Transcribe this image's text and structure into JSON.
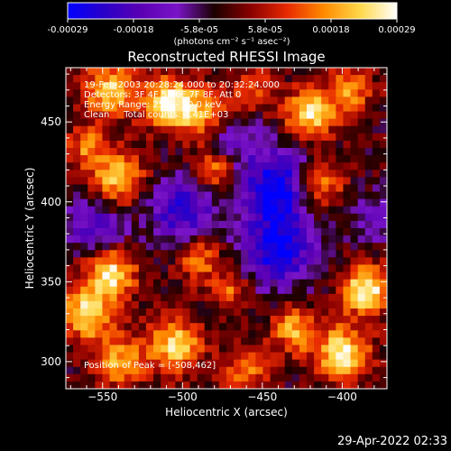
{
  "colorbar": {
    "ticks": [
      "-0.00029",
      "-0.00018",
      "-5.8e-05",
      "5.8e-05",
      "0.00018",
      "0.00029"
    ],
    "unit_label": "(photons cm⁻² s⁻¹ asec⁻²)",
    "colormap": [
      "#0000ff",
      "#2a00c8",
      "#5a00b4",
      "#7a14c8",
      "#1a0000",
      "#8a0000",
      "#e82a00",
      "#ff8a00",
      "#ffd84a",
      "#ffffff"
    ]
  },
  "info": {
    "line1": "19-Feb-2003 20:28:24.000 to 20:32:24.000",
    "line2": "Detectors: 3F 4F 5F 6F 7F 8F, Att 0",
    "line3": "Energy Range: 25.0 - 50.0 keV",
    "line4": "Clean     Total counts: 4.41E+03",
    "peak": "Position of Peak = [-508,462]"
  },
  "footer": {
    "timestamp": "29-Apr-2022 02:33"
  },
  "chart_data": {
    "type": "heatmap",
    "title": "Reconstructed RHESSI Image",
    "xlabel": "Heliocentric X (arcsec)",
    "ylabel": "Heliocentric Y (arcsec)",
    "xlim": [
      -573,
      -372
    ],
    "ylim": [
      283,
      484
    ],
    "x_ticks": [
      -550,
      -500,
      -450,
      -400
    ],
    "y_ticks": [
      300,
      350,
      400,
      450
    ],
    "x_tick_labels": [
      "−550",
      "−500",
      "−450",
      "−400"
    ],
    "y_tick_labels": [
      "300",
      "350",
      "400",
      "450"
    ],
    "value_range": [
      -0.00029,
      0.00029
    ],
    "grid": false,
    "peak_position": [
      -508,
      462
    ],
    "blobs": [
      {
        "x": -508,
        "y": 462,
        "amp": 1.0,
        "sigma": 11
      },
      {
        "x": -485,
        "y": 455,
        "amp": 0.7,
        "sigma": 12
      },
      {
        "x": -545,
        "y": 470,
        "amp": 0.8,
        "sigma": 12
      },
      {
        "x": -420,
        "y": 455,
        "amp": 0.9,
        "sigma": 11
      },
      {
        "x": -395,
        "y": 470,
        "amp": 0.6,
        "sigma": 10
      },
      {
        "x": -480,
        "y": 420,
        "amp": 0.65,
        "sigma": 10
      },
      {
        "x": -540,
        "y": 415,
        "amp": 0.8,
        "sigma": 12
      },
      {
        "x": -415,
        "y": 410,
        "amp": 0.75,
        "sigma": 11
      },
      {
        "x": -545,
        "y": 355,
        "amp": 0.95,
        "sigma": 11
      },
      {
        "x": -560,
        "y": 330,
        "amp": 0.85,
        "sigma": 12
      },
      {
        "x": -490,
        "y": 365,
        "amp": 0.6,
        "sigma": 10
      },
      {
        "x": -385,
        "y": 345,
        "amp": 1.0,
        "sigma": 11
      },
      {
        "x": -400,
        "y": 305,
        "amp": 0.95,
        "sigma": 12
      },
      {
        "x": -430,
        "y": 320,
        "amp": 0.7,
        "sigma": 10
      },
      {
        "x": -505,
        "y": 310,
        "amp": 0.85,
        "sigma": 12
      },
      {
        "x": -540,
        "y": 300,
        "amp": 0.7,
        "sigma": 11
      },
      {
        "x": -460,
        "y": 295,
        "amp": 0.6,
        "sigma": 10
      },
      {
        "x": -470,
        "y": 345,
        "amp": 0.5,
        "sigma": 9
      },
      {
        "x": -560,
        "y": 435,
        "amp": 0.55,
        "sigma": 9
      },
      {
        "x": -455,
        "y": 470,
        "amp": 0.5,
        "sigma": 9
      },
      {
        "x": -440,
        "y": 370,
        "amp": -0.9,
        "sigma": 16
      },
      {
        "x": -440,
        "y": 410,
        "amp": -1.0,
        "sigma": 16
      },
      {
        "x": -500,
        "y": 395,
        "amp": -0.75,
        "sigma": 15
      },
      {
        "x": -555,
        "y": 385,
        "amp": -0.6,
        "sigma": 12
      },
      {
        "x": -470,
        "y": 440,
        "amp": -0.5,
        "sigma": 12
      },
      {
        "x": -380,
        "y": 390,
        "amp": -0.4,
        "sigma": 10
      }
    ]
  }
}
